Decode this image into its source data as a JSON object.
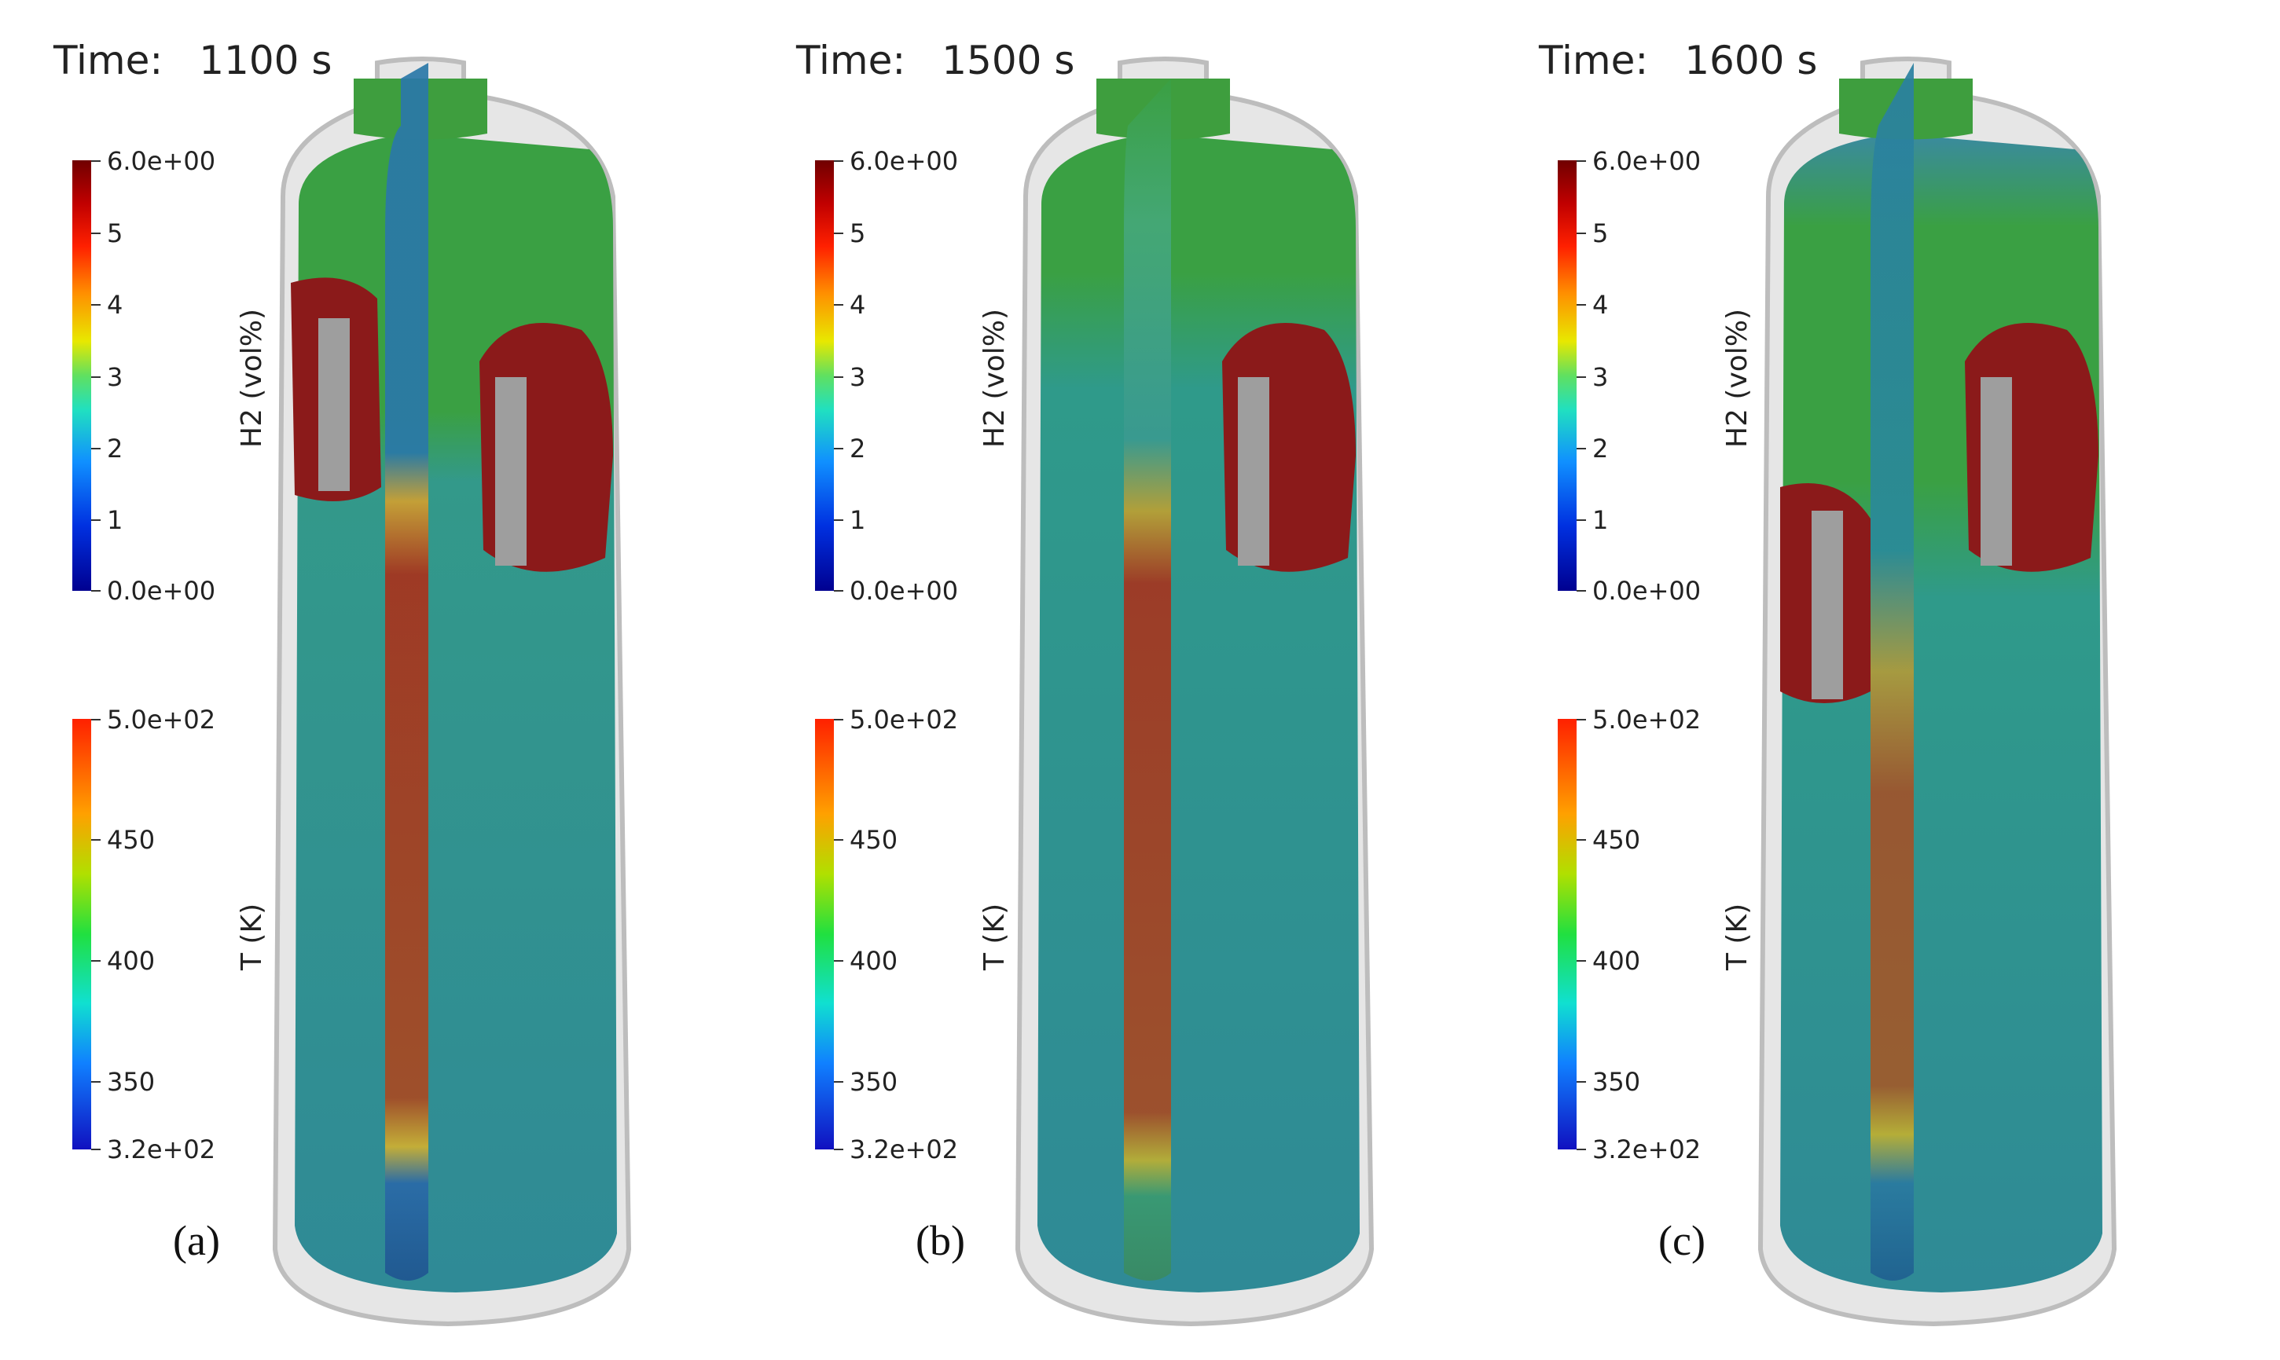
{
  "panels": [
    {
      "time_label": "Time:",
      "time_value": "1100 s",
      "panel_label": "(a)",
      "h2_colorbar": {
        "title": "H2 (vol%)",
        "max_label": "6.0e+00",
        "min_label": "0.0e+00",
        "ticks": [
          "5",
          "4",
          "3",
          "2",
          "1"
        ]
      },
      "t_colorbar": {
        "title": "T (K)",
        "max_label": "5.0e+02",
        "min_label": "3.2e+02",
        "ticks": [
          "450",
          "400",
          "350"
        ]
      }
    },
    {
      "time_label": "Time:",
      "time_value": "1500 s",
      "panel_label": "(b)",
      "h2_colorbar": {
        "title": "H2 (vol%)",
        "max_label": "6.0e+00",
        "min_label": "0.0e+00",
        "ticks": [
          "5",
          "4",
          "3",
          "2",
          "1"
        ]
      },
      "t_colorbar": {
        "title": "T (K)",
        "max_label": "5.0e+02",
        "min_label": "3.2e+02",
        "ticks": [
          "450",
          "400",
          "350"
        ]
      }
    },
    {
      "time_label": "Time:",
      "time_value": "1600 s",
      "panel_label": "(c)",
      "h2_colorbar": {
        "title": "H2 (vol%)",
        "max_label": "6.0e+00",
        "min_label": "0.0e+00",
        "ticks": [
          "5",
          "4",
          "3",
          "2",
          "1"
        ]
      },
      "t_colorbar": {
        "title": "T (K)",
        "max_label": "5.0e+02",
        "min_label": "3.2e+02",
        "ticks": [
          "450",
          "400",
          "350"
        ]
      }
    }
  ],
  "colors": {
    "h2_high": "#8b1a1a",
    "h2_mid": "#3aa043",
    "temp_base": "#2f8f95",
    "temp_hot": "#a8321c",
    "vessel_shell": "#d9d9d9",
    "recombiner": "#9e9e9e"
  }
}
